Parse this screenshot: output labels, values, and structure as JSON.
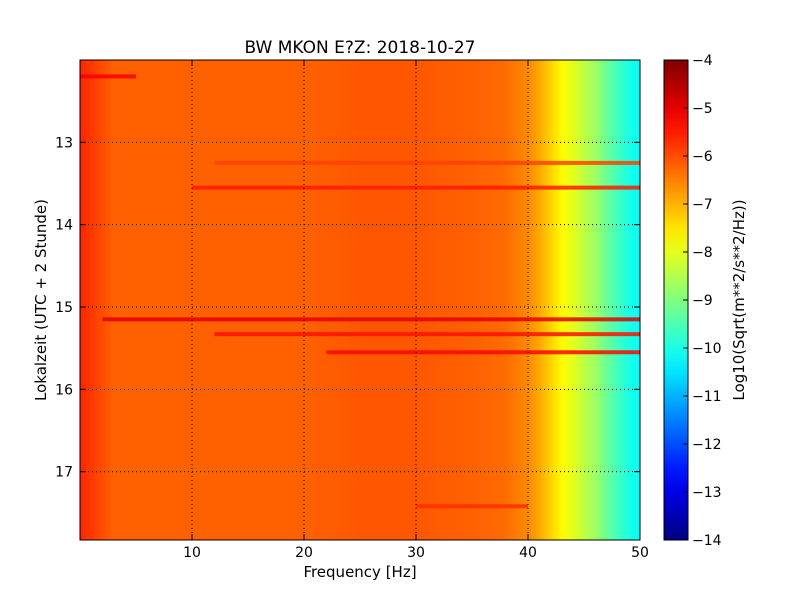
{
  "chart_data": {
    "type": "heatmap",
    "title": "BW MKON E?Z: 2018-10-27",
    "xlabel": "Frequency [Hz]",
    "ylabel": "Lokalzeit (UTC + 2 Stunde)",
    "xlim": [
      0,
      50
    ],
    "ylim": [
      17.83,
      12.0
    ],
    "x_ticks": [
      "10",
      "20",
      "30",
      "40",
      "50"
    ],
    "y_ticks": [
      "13",
      "14",
      "15",
      "16",
      "17"
    ],
    "grid": true,
    "colormap": "jet",
    "colorbar": {
      "label": "Log10(Sqrt(m**2/s**2/Hz))",
      "range": [
        -14,
        -4
      ],
      "ticks": [
        "−4",
        "−5",
        "−6",
        "−7",
        "−8",
        "−9",
        "−10",
        "−11",
        "−12",
        "−13",
        "−14"
      ]
    },
    "base_level_by_frequency": {
      "frequency_hz": [
        0,
        1,
        2,
        3,
        5,
        10,
        20,
        25,
        30,
        35,
        38,
        40,
        41,
        42,
        43,
        44,
        45,
        46,
        47,
        48,
        49,
        50
      ],
      "log10_value": [
        -5.6,
        -5.8,
        -6.0,
        -6.2,
        -6.2,
        -6.2,
        -6.2,
        -6.1,
        -6.1,
        -6.2,
        -6.3,
        -6.6,
        -6.9,
        -7.3,
        -7.7,
        -8.0,
        -8.4,
        -8.7,
        -9.2,
        -9.6,
        -10.0,
        -10.2
      ]
    },
    "bands": [
      {
        "time": 12.2,
        "freq": [
          0,
          5
        ],
        "log10_value": -5.2
      },
      {
        "time": 13.25,
        "freq": [
          12,
          50
        ],
        "log10_value": -5.9
      },
      {
        "time": 13.55,
        "freq": [
          10,
          50
        ],
        "log10_value": -5.5
      },
      {
        "time": 15.15,
        "freq": [
          2,
          50
        ],
        "log10_value": -5.0
      },
      {
        "time": 15.33,
        "freq": [
          12,
          50
        ],
        "log10_value": -5.4
      },
      {
        "time": 15.55,
        "freq": [
          22,
          50
        ],
        "log10_value": -5.3
      },
      {
        "time": 17.42,
        "freq": [
          30,
          40
        ],
        "log10_value": -5.7
      }
    ]
  }
}
